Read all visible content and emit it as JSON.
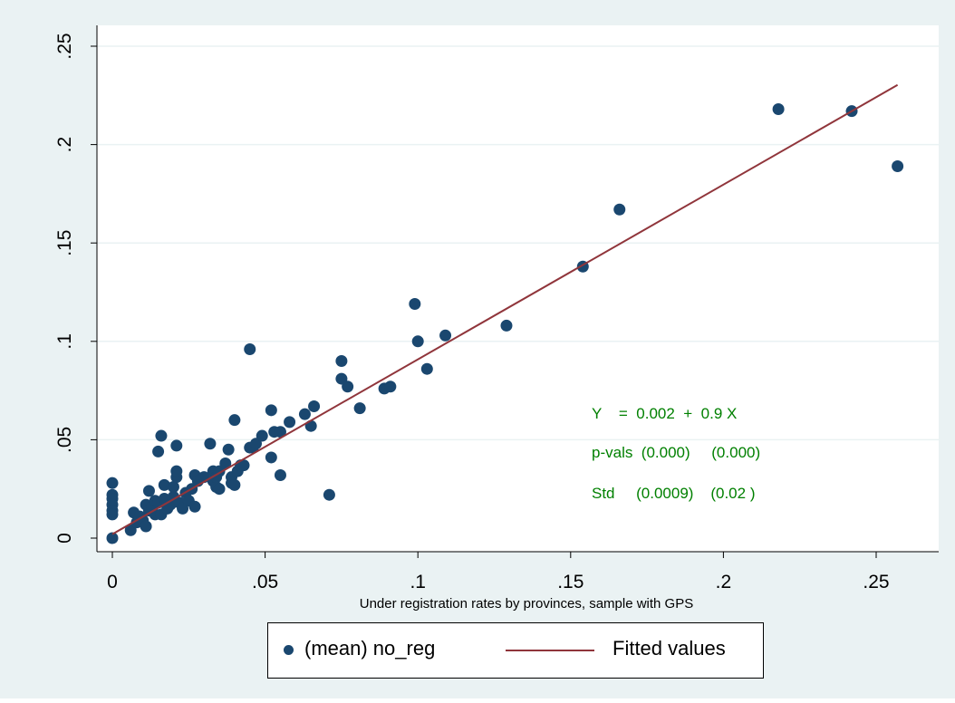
{
  "colors": {
    "outer_bg": "#eaf2f3",
    "plot_bg": "#ffffff",
    "grid": "#eaf2f3",
    "marker": "#1a476f",
    "fit_line": "#90353b",
    "annotation": "#008000"
  },
  "chart_data": {
    "type": "scatter",
    "title": "",
    "xlabel": "Under registration rates by provinces, sample with GPS",
    "ylabel": "",
    "xlim": [
      0,
      0.262
    ],
    "ylim": [
      0,
      0.252
    ],
    "x_ticks": [
      0,
      0.05,
      0.1,
      0.15,
      0.2,
      0.25
    ],
    "x_tick_labels": [
      "0",
      ".05",
      ".1",
      ".15",
      ".2",
      ".25"
    ],
    "y_ticks": [
      0,
      0.05,
      0.1,
      0.15,
      0.2,
      0.25
    ],
    "y_tick_labels": [
      "0",
      ".05",
      ".1",
      ".15",
      ".2",
      ".25"
    ],
    "grid": true,
    "legend_position": "bottom",
    "series": [
      {
        "name": "(mean) no_reg",
        "kind": "scatter",
        "points": [
          [
            0,
            0.028
          ],
          [
            0,
            0.022
          ],
          [
            0,
            0.02
          ],
          [
            0,
            0.017
          ],
          [
            0,
            0.014
          ],
          [
            0,
            0.012
          ],
          [
            0,
            0.0
          ],
          [
            0.006,
            0.004
          ],
          [
            0.007,
            0.013
          ],
          [
            0.008,
            0.008
          ],
          [
            0.009,
            0.011
          ],
          [
            0.01,
            0.009
          ],
          [
            0.011,
            0.006
          ],
          [
            0.011,
            0.017
          ],
          [
            0.012,
            0.014
          ],
          [
            0.012,
            0.024
          ],
          [
            0.013,
            0.016
          ],
          [
            0.014,
            0.012
          ],
          [
            0.014,
            0.019
          ],
          [
            0.015,
            0.018
          ],
          [
            0.015,
            0.044
          ],
          [
            0.016,
            0.052
          ],
          [
            0.016,
            0.012
          ],
          [
            0.017,
            0.02
          ],
          [
            0.017,
            0.027
          ],
          [
            0.018,
            0.015
          ],
          [
            0.019,
            0.017
          ],
          [
            0.02,
            0.021
          ],
          [
            0.02,
            0.026
          ],
          [
            0.021,
            0.031
          ],
          [
            0.021,
            0.034
          ],
          [
            0.021,
            0.047
          ],
          [
            0.022,
            0.018
          ],
          [
            0.023,
            0.015
          ],
          [
            0.024,
            0.023
          ],
          [
            0.025,
            0.019
          ],
          [
            0.026,
            0.025
          ],
          [
            0.027,
            0.016
          ],
          [
            0.027,
            0.032
          ],
          [
            0.028,
            0.029
          ],
          [
            0.03,
            0.031
          ],
          [
            0.032,
            0.048
          ],
          [
            0.033,
            0.029
          ],
          [
            0.033,
            0.034
          ],
          [
            0.034,
            0.026
          ],
          [
            0.034,
            0.031
          ],
          [
            0.035,
            0.025
          ],
          [
            0.035,
            0.034
          ],
          [
            0.037,
            0.038
          ],
          [
            0.038,
            0.045
          ],
          [
            0.039,
            0.031
          ],
          [
            0.039,
            0.028
          ],
          [
            0.04,
            0.027
          ],
          [
            0.04,
            0.06
          ],
          [
            0.041,
            0.034
          ],
          [
            0.042,
            0.037
          ],
          [
            0.043,
            0.037
          ],
          [
            0.045,
            0.046
          ],
          [
            0.045,
            0.096
          ],
          [
            0.046,
            0.046
          ],
          [
            0.047,
            0.048
          ],
          [
            0.049,
            0.052
          ],
          [
            0.052,
            0.065
          ],
          [
            0.052,
            0.041
          ],
          [
            0.053,
            0.054
          ],
          [
            0.055,
            0.032
          ],
          [
            0.055,
            0.054
          ],
          [
            0.058,
            0.059
          ],
          [
            0.063,
            0.063
          ],
          [
            0.065,
            0.057
          ],
          [
            0.066,
            0.067
          ],
          [
            0.071,
            0.022
          ],
          [
            0.075,
            0.081
          ],
          [
            0.075,
            0.09
          ],
          [
            0.077,
            0.077
          ],
          [
            0.081,
            0.066
          ],
          [
            0.089,
            0.076
          ],
          [
            0.091,
            0.077
          ],
          [
            0.099,
            0.119
          ],
          [
            0.1,
            0.1
          ],
          [
            0.103,
            0.086
          ],
          [
            0.109,
            0.103
          ],
          [
            0.129,
            0.108
          ],
          [
            0.154,
            0.138
          ],
          [
            0.166,
            0.167
          ],
          [
            0.218,
            0.218
          ],
          [
            0.242,
            0.217
          ],
          [
            0.257,
            0.189
          ]
        ]
      },
      {
        "name": "Fitted values",
        "kind": "line",
        "x": [
          0,
          0.257
        ],
        "y": [
          0.002,
          0.2303
        ]
      }
    ],
    "annotations": [
      "Y    =  0.002  +  0.9 X",
      "p-vals  (0.000)     (0.000)",
      "Std     (0.0009)    (0.02 )"
    ]
  }
}
